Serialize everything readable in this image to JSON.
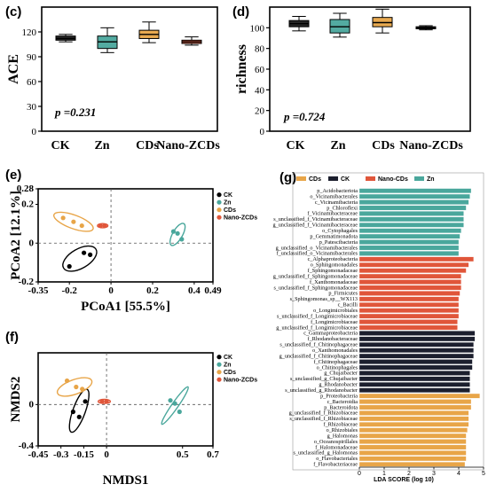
{
  "chart_data": [
    {
      "panel": "(c)",
      "type": "box",
      "ylabel": "ACE",
      "categories": [
        "CK",
        "Zn",
        "CDs",
        "Nano-ZCDs"
      ],
      "colors": [
        "#000000",
        "#4aa79c",
        "#e8a548",
        "#e0563a"
      ],
      "boxes": [
        {
          "min": 108,
          "q1": 110,
          "median": 112,
          "q3": 115,
          "max": 117
        },
        {
          "min": 95,
          "q1": 100,
          "median": 108,
          "q3": 115,
          "max": 125
        },
        {
          "min": 107,
          "q1": 112,
          "median": 117,
          "q3": 122,
          "max": 132
        },
        {
          "min": 104,
          "q1": 106,
          "median": 108,
          "q3": 110,
          "max": 114
        }
      ],
      "ylim": [
        0,
        150
      ],
      "yticks": [
        0,
        30,
        60,
        90,
        120
      ],
      "annotation": "p =0.231"
    },
    {
      "panel": "(d)",
      "type": "box",
      "ylabel": "richness",
      "categories": [
        "CK",
        "Zn",
        "CDs",
        "Nano-ZCDs"
      ],
      "colors": [
        "#000000",
        "#4aa79c",
        "#e8a548",
        "#000000"
      ],
      "boxes": [
        {
          "min": 97,
          "q1": 101,
          "median": 104,
          "q3": 107,
          "max": 111
        },
        {
          "min": 91,
          "q1": 95,
          "median": 101,
          "q3": 108,
          "max": 114
        },
        {
          "min": 95,
          "q1": 101,
          "median": 105,
          "q3": 110,
          "max": 118
        },
        {
          "min": 98,
          "q1": 99,
          "median": 100,
          "q3": 101,
          "max": 102
        }
      ],
      "ylim": [
        0,
        120
      ],
      "yticks": [
        0,
        20,
        40,
        60,
        80,
        100
      ],
      "annotation": "p =0.724"
    },
    {
      "panel": "(e)",
      "type": "scatter",
      "xlabel": "PCoA1 [55.5%]",
      "ylabel": "PCoA2 [12.1%]",
      "xlim": [
        -0.35,
        0.49
      ],
      "ylim": [
        -0.2,
        0.28
      ],
      "xticks": [
        -0.35,
        -0.2,
        0,
        0.2,
        0.4,
        0.49
      ],
      "yticks": [
        -0.2,
        0,
        0.2,
        0.28
      ],
      "xtick_labels": [
        "-0.35",
        "-0.2",
        "0",
        "0.2",
        "0.4",
        "0.49"
      ],
      "ytick_labels": [
        "-0.2",
        "0",
        "0.2",
        "0.28"
      ],
      "legend": [
        "CK",
        "Zn",
        "CDs",
        "Nano-ZCDs"
      ],
      "colors": [
        "#000000",
        "#4aa79c",
        "#e8a548",
        "#e0563a"
      ],
      "series": [
        {
          "name": "CK",
          "points": [
            [
              -0.2,
              -0.12
            ],
            [
              -0.13,
              -0.05
            ],
            [
              -0.1,
              -0.06
            ]
          ]
        },
        {
          "name": "Zn",
          "points": [
            [
              0.3,
              0.06
            ],
            [
              0.32,
              0.05
            ],
            [
              0.34,
              0.02
            ]
          ]
        },
        {
          "name": "CDs",
          "points": [
            [
              -0.23,
              0.13
            ],
            [
              -0.18,
              0.11
            ],
            [
              -0.14,
              0.09
            ]
          ]
        },
        {
          "name": "Nano-ZCDs",
          "points": [
            [
              -0.05,
              0.09
            ],
            [
              -0.03,
              0.09
            ]
          ]
        }
      ],
      "ellipses": [
        {
          "cx": -0.15,
          "cy": -0.08,
          "rx": 0.09,
          "ry": 0.05,
          "angle": -30,
          "color": "#000000"
        },
        {
          "cx": 0.32,
          "cy": 0.045,
          "rx": 0.06,
          "ry": 0.025,
          "angle": -60,
          "color": "#4aa79c"
        },
        {
          "cx": -0.18,
          "cy": 0.11,
          "rx": 0.1,
          "ry": 0.035,
          "angle": 20,
          "color": "#e8a548"
        },
        {
          "cx": -0.04,
          "cy": 0.09,
          "rx": 0.025,
          "ry": 0.011,
          "angle": 0,
          "color": "#e0563a"
        }
      ]
    },
    {
      "panel": "(f)",
      "type": "scatter",
      "xlabel": "NMDS1",
      "ylabel": "NMDS2",
      "xlim": [
        -0.45,
        0.7
      ],
      "ylim": [
        -0.4,
        0.5
      ],
      "xticks": [
        -0.45,
        -0.3,
        -0.15,
        0,
        0.5,
        0.7
      ],
      "yticks": [
        -0.4,
        0
      ],
      "xtick_labels": [
        "-0.45",
        "-0.3",
        "-0.15",
        "0",
        "0.5",
        "0.7"
      ],
      "ytick_labels": [
        "-0.4",
        "0"
      ],
      "legend": [
        "CK",
        "Zn",
        "CDs",
        "Nano-ZCDs"
      ],
      "colors": [
        "#000000",
        "#4aa79c",
        "#e8a548",
        "#e0563a"
      ],
      "series": [
        {
          "name": "CK",
          "points": [
            [
              -0.22,
              -0.07
            ],
            [
              -0.18,
              -0.12
            ],
            [
              -0.14,
              0.03
            ]
          ]
        },
        {
          "name": "Zn",
          "points": [
            [
              0.42,
              0.04
            ],
            [
              0.45,
              0.01
            ],
            [
              0.48,
              -0.07
            ]
          ]
        },
        {
          "name": "CDs",
          "points": [
            [
              -0.26,
              0.23
            ],
            [
              -0.2,
              0.17
            ],
            [
              -0.16,
              0.15
            ]
          ]
        },
        {
          "name": "Nano-ZCDs",
          "points": [
            [
              -0.03,
              0.03
            ],
            [
              0.0,
              0.03
            ]
          ]
        }
      ],
      "ellipses": [
        {
          "cx": -0.18,
          "cy": -0.06,
          "rx": 0.15,
          "ry": 0.06,
          "angle": -70,
          "color": "#000000"
        },
        {
          "cx": 0.45,
          "cy": -0.01,
          "rx": 0.15,
          "ry": 0.03,
          "angle": -55,
          "color": "#4aa79c"
        },
        {
          "cx": -0.21,
          "cy": 0.17,
          "rx": 0.12,
          "ry": 0.07,
          "angle": -20,
          "color": "#e8a548"
        },
        {
          "cx": -0.015,
          "cy": 0.03,
          "rx": 0.04,
          "ry": 0.02,
          "angle": 0,
          "color": "#e0563a"
        }
      ]
    },
    {
      "panel": "(g)",
      "type": "bar",
      "orientation": "horizontal",
      "xlabel": "LDA SCORE (log 10)",
      "xlim": [
        0,
        5
      ],
      "xticks": [
        0,
        1,
        2,
        3,
        4,
        5
      ],
      "legend": [
        "CDs",
        "CK",
        "Nano-CDs",
        "Zn"
      ],
      "legend_colors": [
        "#e8a548",
        "#1c1f2e",
        "#e0563a",
        "#4aa79c"
      ],
      "group_colors": {
        "Zn": "#4aa79c",
        "Nano-CDs": "#e0563a",
        "CK": "#1c1f2e",
        "CDs": "#e8a548"
      },
      "categories": [
        "p_Acidobacteriota",
        "o_Vicinamibacterales",
        "c_Vicinamibacteria",
        "p_Chloroflexi",
        "f_Vicinamibacteraceae",
        "s_unclassified_f_Vicinamibacteraceae",
        "g_unclassified_f_Vicinamibacteraceae",
        "o_Cytophagales",
        "p_Gemmatimonadota",
        "p_Patescibacteria",
        "g_unclassified_o_Vicinamibacterales",
        "f_unclassified_o_Vicinamibacterales",
        "c_Alphaproteobacteria",
        "o_Sphingomonadales",
        "f_Sphingomonadaceae",
        "g_unclassified_f_Sphingomonadaceae",
        "f_Xanthomonadaceae",
        "s_unclassified_f_Sphingomonadaceae",
        "p_Firmicutes",
        "s_Sphingomonas_sp__WX113",
        "c_Bacilli",
        "o_Longimicrobiales",
        "s_unclassified_f_Longimicrobiaceae",
        "f_Longimicrobiaceae",
        "g_unclassified_f_Longimicrobiaceae",
        "c_Gammaproteobacteria",
        "f_Rhodanobacteraceae",
        "s_unclassified_f_Chitinophagaceae",
        "o_Xanthomonadales",
        "g_unclassified_f_Chitinophagaceae",
        "f_Chitinophagaceae",
        "o_Chitinophagales",
        "g_Chujaibacter",
        "s_unclassified_g_Chujaibacter",
        "g_Rhodanobacter",
        "s_unclassified_g_Rhodanobacter",
        "p_Proteobacteria",
        "c_Bacteroidia",
        "p_Bacteroidota",
        "g_unclassified_f_Rhizobiaceae",
        "s_unclassified_f_Rhizobiaceae",
        "f_Rhizobiaceae",
        "o_Rhizobiales",
        "g_Halomonas",
        "o_Oceanospirillales",
        "f_Halomonadaceae",
        "s_unclassified_g_Halomonas",
        "o_Flavobacteriales",
        "f_Flavobacteriaceae"
      ],
      "groups": [
        "Zn",
        "Zn",
        "Zn",
        "Zn",
        "Zn",
        "Zn",
        "Zn",
        "Zn",
        "Zn",
        "Zn",
        "Zn",
        "Zn",
        "Nano-CDs",
        "Nano-CDs",
        "Nano-CDs",
        "Nano-CDs",
        "Nano-CDs",
        "Nano-CDs",
        "Nano-CDs",
        "Nano-CDs",
        "Nano-CDs",
        "Nano-CDs",
        "Nano-CDs",
        "Nano-CDs",
        "Nano-CDs",
        "CK",
        "CK",
        "CK",
        "CK",
        "CK",
        "CK",
        "CK",
        "CK",
        "CK",
        "CK",
        "CK",
        "CDs",
        "CDs",
        "CDs",
        "CDs",
        "CDs",
        "CDs",
        "CDs",
        "CDs",
        "CDs",
        "CDs",
        "CDs",
        "CDs",
        "CDs"
      ],
      "values": [
        4.5,
        4.45,
        4.4,
        4.3,
        4.2,
        4.2,
        4.2,
        4.1,
        4.05,
        4.0,
        4.0,
        4.0,
        4.6,
        4.4,
        4.3,
        4.1,
        4.1,
        4.1,
        4.05,
        4.0,
        4.0,
        4.0,
        4.0,
        3.95,
        3.95,
        4.65,
        4.65,
        4.6,
        4.6,
        4.6,
        4.55,
        4.55,
        4.45,
        4.45,
        4.45,
        4.45,
        4.85,
        4.5,
        4.5,
        4.4,
        4.4,
        4.4,
        4.35,
        4.3,
        4.3,
        4.3,
        4.3,
        4.3,
        4.25
      ]
    }
  ]
}
